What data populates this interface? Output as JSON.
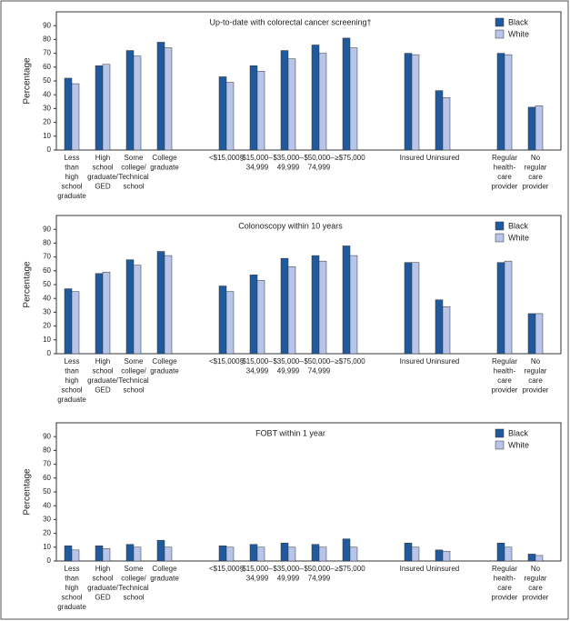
{
  "chart_data": [
    {
      "type": "bar",
      "title": "Up-to-date with colorectal cancer screening†",
      "y_label": "Percentage",
      "categories": [
        "Less\nthan\nhigh\nschool\ngraduate",
        "High\nschool\ngraduate/\nGED",
        "Some\ncollege/\nTechnical\nschool",
        "College\ngraduate",
        null,
        "<$15,000§",
        "$15,000–\n34,999",
        "$35,000–\n49,999",
        "$50,000–\n74,999",
        "≥$75,000",
        null,
        "Insured",
        "Uninsured",
        null,
        "Regular\nhealth-\ncare\nprovider",
        "No\nregular\ncare\nprovider"
      ],
      "series": [
        {
          "name": "Black",
          "color": "#1f5a9e",
          "values": [
            52,
            61,
            72,
            78,
            null,
            53,
            61,
            72,
            76,
            81,
            null,
            70,
            43,
            null,
            70,
            31
          ]
        },
        {
          "name": "White",
          "color": "#b8c4e8",
          "values": [
            48,
            62,
            68,
            74,
            null,
            49,
            57,
            66,
            70,
            74,
            null,
            69,
            38,
            null,
            69,
            32
          ]
        }
      ],
      "ylim": [
        0,
        100
      ],
      "yticks": [
        0,
        10,
        20,
        30,
        40,
        50,
        60,
        70,
        80,
        90
      ],
      "legend": "top-right"
    },
    {
      "type": "bar",
      "title": "Colonoscopy within 10 years",
      "y_label": "Percentage",
      "categories": [
        "Less\nthan\nhigh\nschool\ngraduate",
        "High\nschool\ngraduate/\nGED",
        "Some\ncollege/\nTechnical\nschool",
        "College\ngraduate",
        null,
        "<$15,000§",
        "$15,000–\n34,999",
        "$35,000–\n49,999",
        "$50,000–\n74,999",
        "≥$75,000",
        null,
        "Insured",
        "Uninsured",
        null,
        "Regular\nhealth-\ncare\nprovider",
        "No\nregular\ncare\nprovider"
      ],
      "series": [
        {
          "name": "Black",
          "color": "#1f5a9e",
          "values": [
            47,
            58,
            68,
            74,
            null,
            49,
            57,
            69,
            71,
            78,
            null,
            66,
            39,
            null,
            66,
            29
          ]
        },
        {
          "name": "White",
          "color": "#b8c4e8",
          "values": [
            45,
            59,
            64,
            71,
            null,
            45,
            53,
            63,
            67,
            71,
            null,
            66,
            34,
            null,
            67,
            29
          ]
        }
      ],
      "ylim": [
        0,
        100
      ],
      "yticks": [
        0,
        10,
        20,
        30,
        40,
        50,
        60,
        70,
        80,
        90
      ],
      "legend": "top-right"
    },
    {
      "type": "bar",
      "title": "FOBT within 1 year",
      "y_label": "Percentage",
      "categories": [
        "Less\nthan\nhigh\nschool\ngraduate",
        "High\nschool\ngraduate/\nGED",
        "Some\ncollege/\nTechnical\nschool",
        "College\ngraduate",
        null,
        "<$15,000§",
        "$15,000–\n34,999",
        "$35,000–\n49,999",
        "$50,000–\n74,999",
        "≥$75,000",
        null,
        "Insured",
        "Uninsured",
        null,
        "Regular\nhealth-\ncare\nprovider",
        "No\nregular\ncare\nprovider"
      ],
      "series": [
        {
          "name": "Black",
          "color": "#1f5a9e",
          "values": [
            11,
            11,
            12,
            15,
            null,
            11,
            12,
            13,
            12,
            16,
            null,
            13,
            8,
            null,
            13,
            5
          ]
        },
        {
          "name": "White",
          "color": "#b8c4e8",
          "values": [
            8,
            9,
            10,
            10,
            null,
            10,
            10,
            10,
            10,
            10,
            null,
            10,
            7,
            null,
            10,
            4
          ]
        }
      ],
      "ylim": [
        0,
        100
      ],
      "yticks": [
        0,
        10,
        20,
        30,
        40,
        50,
        60,
        70,
        80,
        90
      ],
      "legend": "top-right"
    }
  ]
}
